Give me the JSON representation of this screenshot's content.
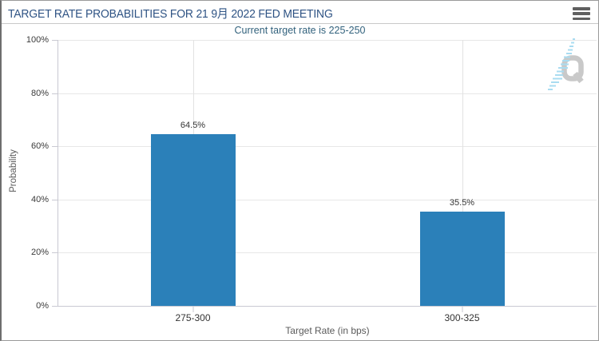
{
  "header": {
    "title": "TARGET RATE PROBABILITIES FOR 21 9月 2022 FED MEETING"
  },
  "subtitle": "Current target rate is 225-250",
  "menu": {
    "icon": "hamburger-menu-icon",
    "tooltip": "Chart context menu"
  },
  "watermark": {
    "letter": "Q"
  },
  "colors": {
    "bar": "#2b80b9",
    "title": "#2e5384",
    "subtitle": "#31617c",
    "axis_line": "#c9c9d2",
    "gridline": "#e7e7e7",
    "tick_label": "#3a3a3a",
    "axis_title": "#5a5a5a",
    "watermark_gray": "#c9c9c9",
    "watermark_blue": "#a9dcf1"
  },
  "chart_data": {
    "type": "bar",
    "title": "TARGET RATE PROBABILITIES FOR 21 9月 2022 FED MEETING",
    "subtitle": "Current target rate is 225-250",
    "categories": [
      "275-300",
      "300-325"
    ],
    "values": [
      64.5,
      35.5
    ],
    "value_labels": [
      "64.5%",
      "35.5%"
    ],
    "xlabel": "Target Rate (in bps)",
    "ylabel": "Probability",
    "ylim": [
      0,
      100
    ],
    "ytick_labels_top_to_bottom": [
      "100%",
      "80%",
      "60%",
      "40%",
      "20%",
      "0%"
    ],
    "grid": true,
    "legend": false,
    "bar_color": "#2b80b9"
  }
}
